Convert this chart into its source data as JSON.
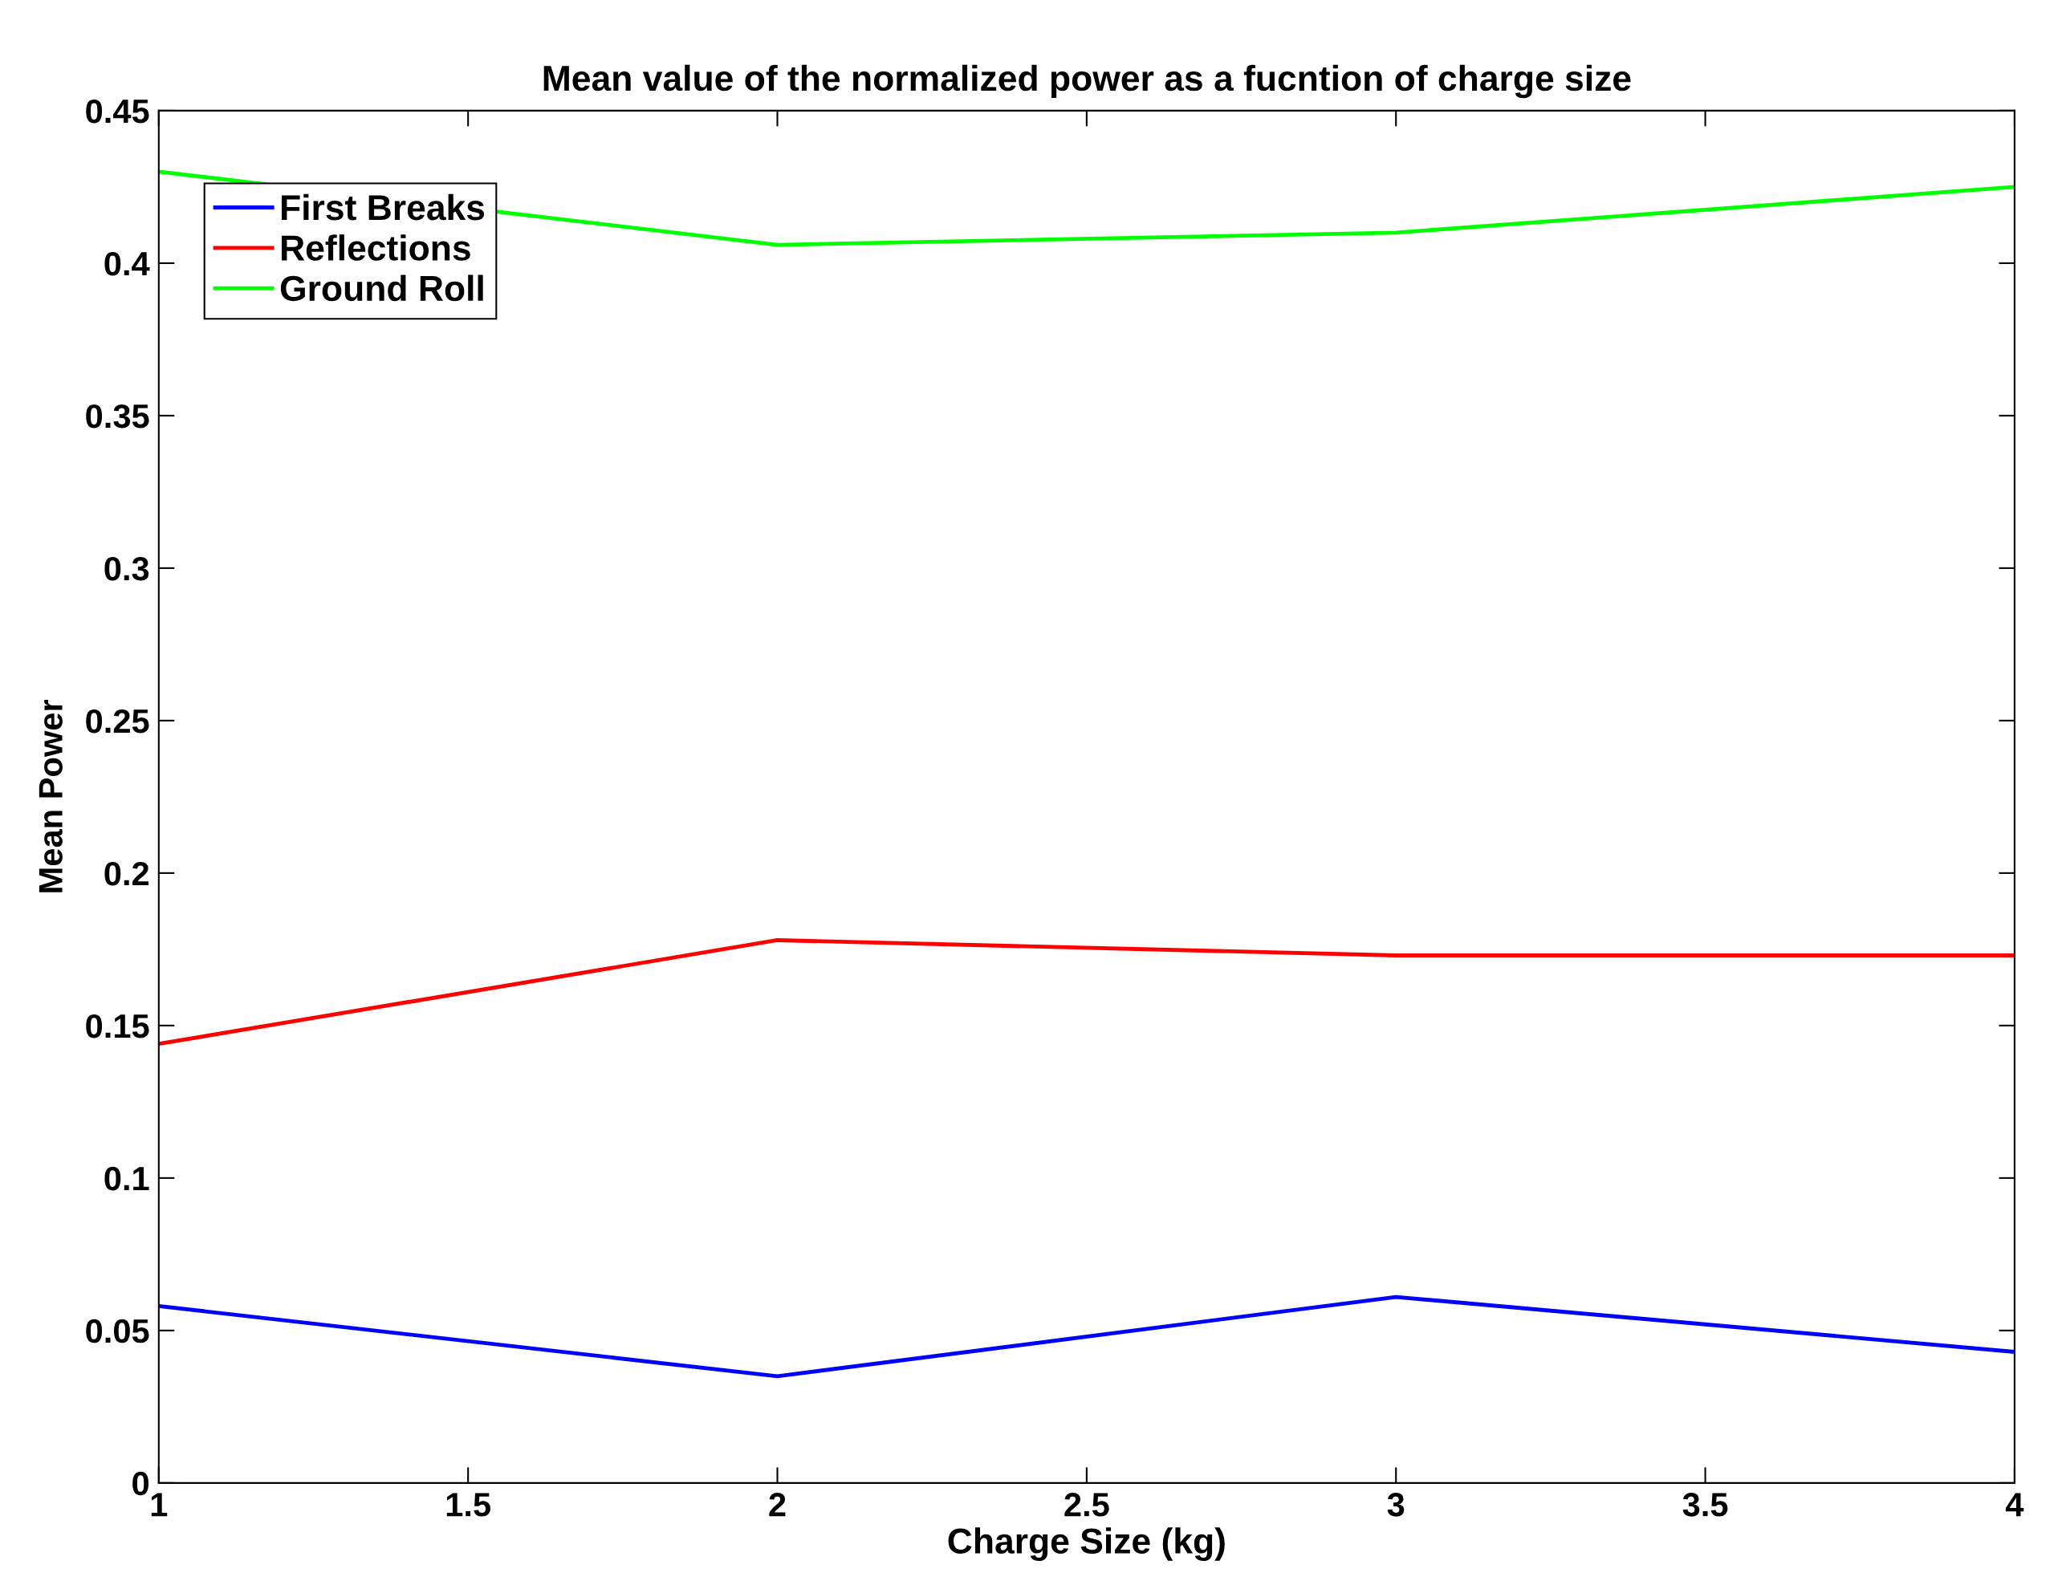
{
  "chart_data": {
    "type": "line",
    "title": "Mean value of the normalized power as a fucntion of charge size",
    "xlabel": "Charge Size (kg)",
    "ylabel": "Mean Power",
    "x": [
      1,
      2,
      3,
      4
    ],
    "series": [
      {
        "name": "First Breaks",
        "color": "#0000ff",
        "values": [
          0.058,
          0.035,
          0.061,
          0.043
        ]
      },
      {
        "name": "Reflections",
        "color": "#ff0000",
        "values": [
          0.144,
          0.178,
          0.173,
          0.173
        ]
      },
      {
        "name": "Ground Roll",
        "color": "#00ff00",
        "values": [
          0.43,
          0.406,
          0.41,
          0.425
        ]
      }
    ],
    "xlim": [
      1,
      4
    ],
    "xticks": [
      1,
      1.5,
      2,
      2.5,
      3,
      3.5,
      4
    ],
    "ylim": [
      0,
      0.45
    ],
    "yticks": [
      0,
      0.05,
      0.1,
      0.15,
      0.2,
      0.25,
      0.3,
      0.35,
      0.4,
      0.45
    ],
    "legend": "upper left",
    "grid": false,
    "marker": "none",
    "line_style": "solid"
  }
}
